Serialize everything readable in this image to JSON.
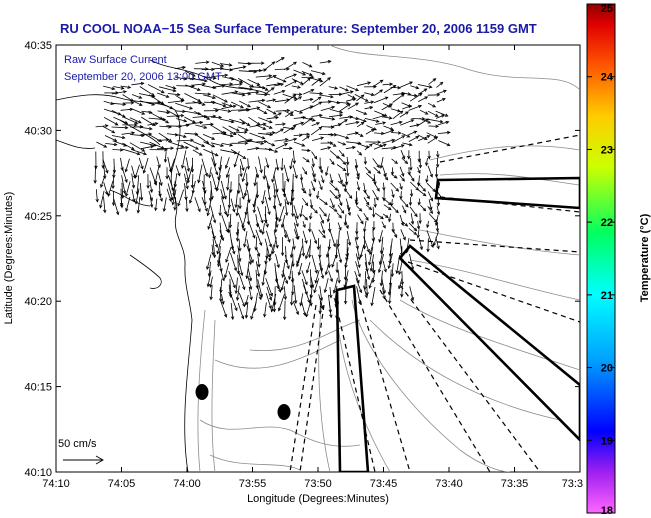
{
  "chart_data": {
    "type": "scatter",
    "title": "RU COOL  NOAA−15  Sea Surface Temperature:  September 20, 2006 1159 GMT",
    "legend": {
      "line1": "Raw Surface Current",
      "line2": "September 20, 2006 13:00 GMT"
    },
    "xlabel": "Longitude (Degrees:Minutes)",
    "ylabel": "Latitude (Degrees:Minutes)",
    "x_ticks": [
      "74:10",
      "74:05",
      "74:00",
      "73:55",
      "73:50",
      "73:45",
      "73:40",
      "73:35",
      "73:3"
    ],
    "y_ticks": [
      "40:35",
      "40:30",
      "40:25",
      "40:20",
      "40:15",
      "40:10"
    ],
    "scale_label": "50 cm/s",
    "colorbar": {
      "label": "Temperature (°C)",
      "ticks": [
        "25",
        "24",
        "23",
        "22",
        "21",
        "20",
        "19",
        "18"
      ],
      "range": [
        18,
        25
      ]
    },
    "grid": false
  }
}
